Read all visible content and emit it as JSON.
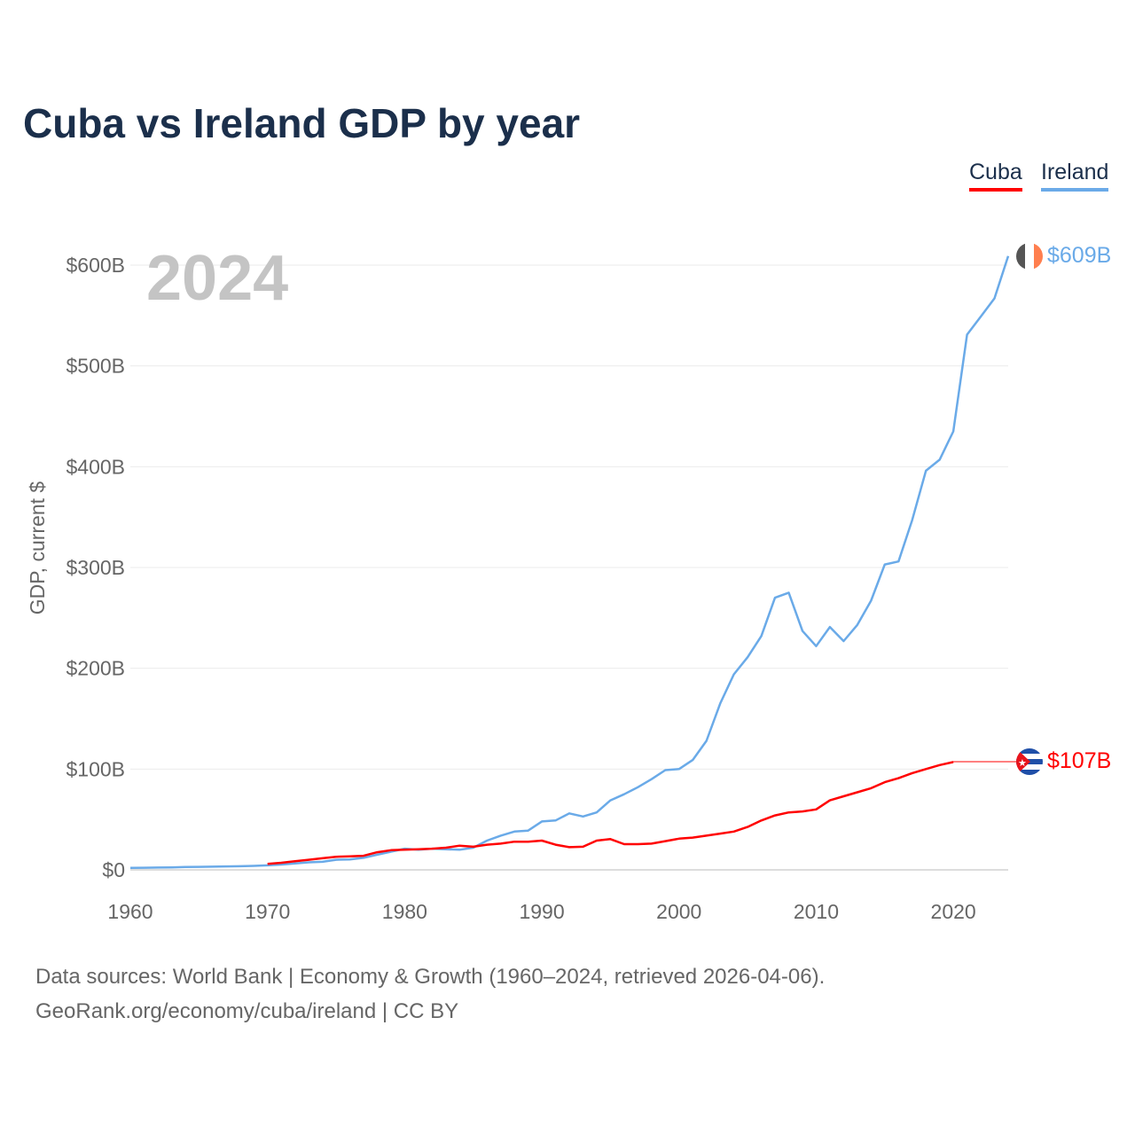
{
  "title": "Cuba vs Ireland GDP by year",
  "year_watermark": "2024",
  "legend": [
    {
      "label": "Cuba",
      "color": "#ff0000"
    },
    {
      "label": "Ireland",
      "color": "#6aaae8"
    }
  ],
  "end_labels": {
    "cuba": "$107B",
    "ireland": "$609B"
  },
  "source_line1": "Data sources: World Bank | Economy & Growth (1960–2024, retrieved 2026-04-06).",
  "source_line2": "GeoRank.org/economy/cuba/ireland | CC BY",
  "chart_data": {
    "type": "line",
    "title": "Cuba vs Ireland GDP by year",
    "xlabel": "",
    "ylabel": "GDP, current $",
    "xlim": [
      1960,
      2024
    ],
    "ylim": [
      0,
      620
    ],
    "x_ticks": [
      "1960",
      "1970",
      "1980",
      "1990",
      "2000",
      "2010",
      "2020"
    ],
    "y_ticks": [
      {
        "value": 0,
        "label": "$0"
      },
      {
        "value": 100,
        "label": "$100B"
      },
      {
        "value": 200,
        "label": "$200B"
      },
      {
        "value": 300,
        "label": "$300B"
      },
      {
        "value": 400,
        "label": "$400B"
      },
      {
        "value": 500,
        "label": "$500B"
      },
      {
        "value": 600,
        "label": "$600B"
      }
    ],
    "grid": true,
    "legend_position": "top-right",
    "units": "billion USD",
    "series": [
      {
        "name": "Ireland",
        "color": "#6aaae8",
        "start_year": 1960,
        "values": [
          2,
          2.1,
          2.3,
          2.5,
          2.8,
          3,
          3.2,
          3.4,
          3.6,
          4,
          4.5,
          5.3,
          6.3,
          7.5,
          8,
          10,
          10.3,
          12,
          15,
          18,
          21,
          20,
          21,
          20.5,
          20,
          22,
          29,
          34,
          38,
          39,
          48,
          49,
          56,
          53,
          57,
          69,
          75,
          82,
          90,
          99,
          100,
          109,
          128,
          165,
          194,
          211,
          232,
          270,
          275,
          237,
          222,
          241,
          227,
          243,
          267,
          303,
          306,
          347,
          396,
          407,
          435,
          531,
          549,
          567,
          609
        ]
      },
      {
        "name": "Cuba",
        "color": "#ff0000",
        "start_year": 1970,
        "values": [
          6,
          7,
          8.5,
          10,
          11.5,
          13,
          13.5,
          14,
          17.5,
          19.5,
          20,
          20.5,
          21,
          22,
          24,
          23,
          25,
          26,
          28,
          28,
          29,
          25,
          22.5,
          23,
          29,
          30.5,
          25.5,
          25.5,
          26,
          28.5,
          31,
          32,
          34,
          36,
          38,
          42.6,
          49,
          54,
          57,
          58,
          60,
          69,
          73,
          77,
          81,
          87,
          91,
          96,
          100,
          104,
          107
        ]
      }
    ]
  }
}
